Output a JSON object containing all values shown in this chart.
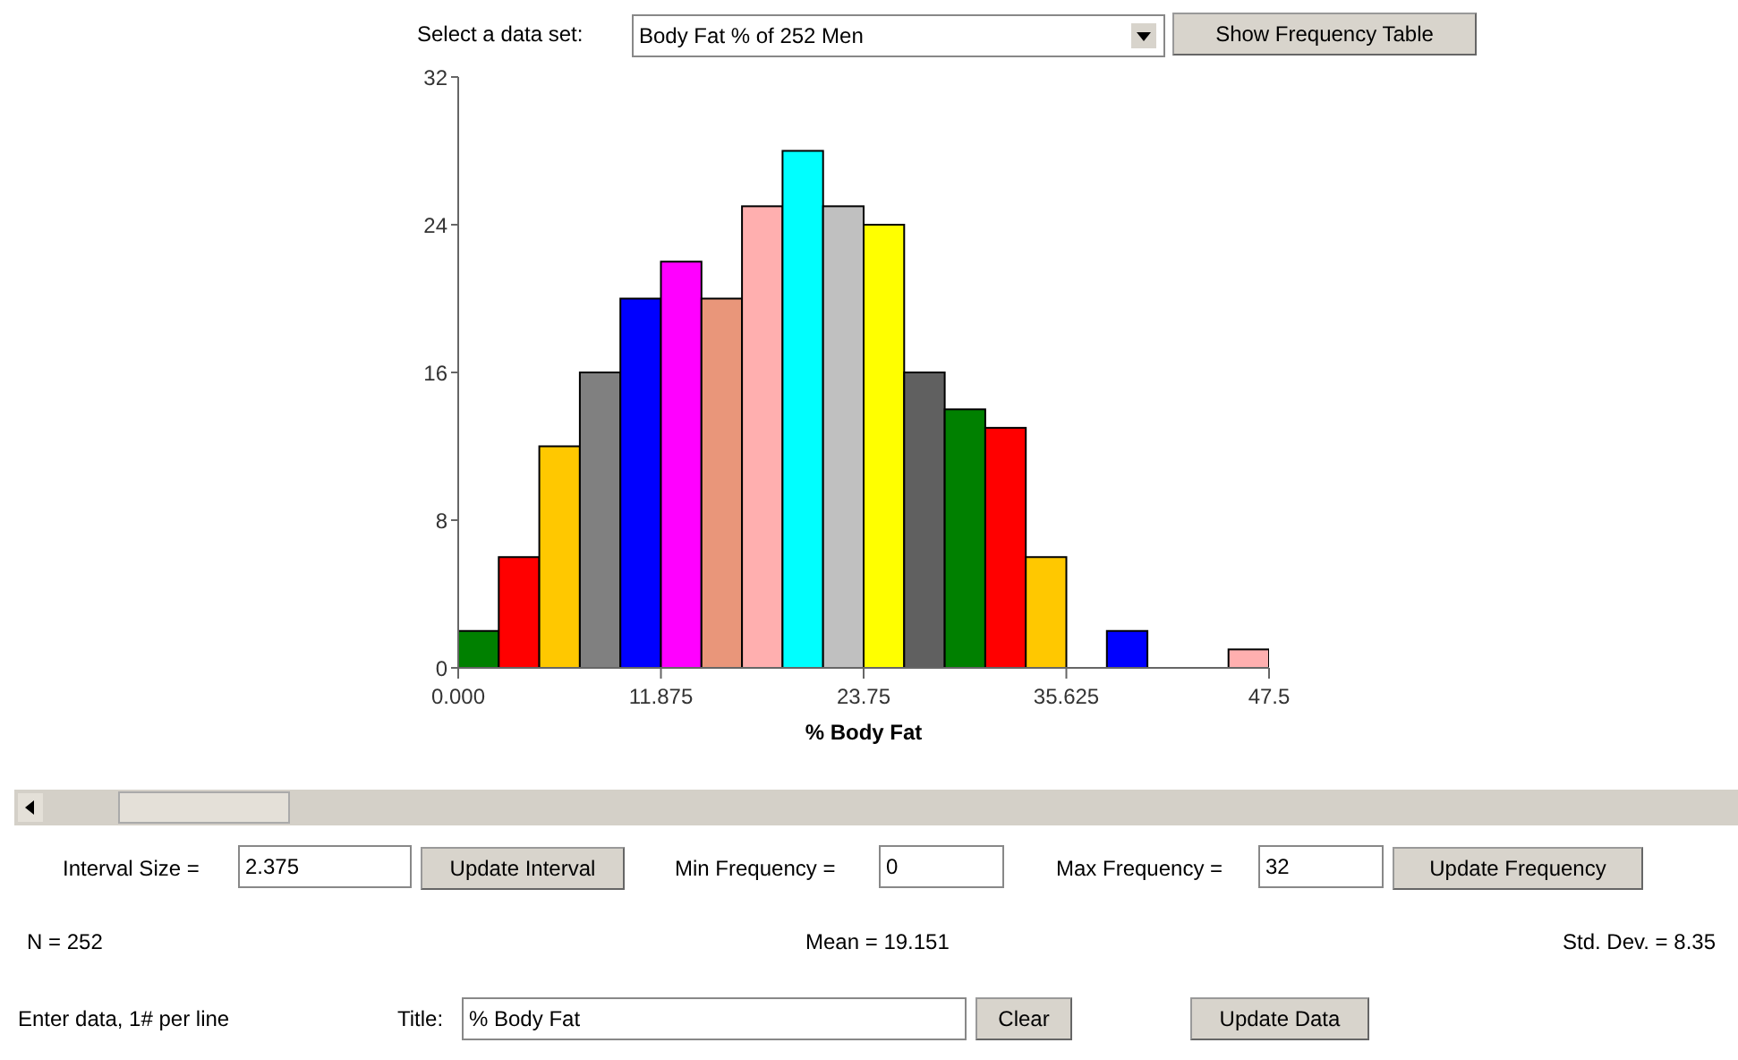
{
  "chart_data": {
    "type": "histogram",
    "xlabel": "% Body Fat",
    "bins": [
      0,
      2.375,
      4.75,
      7.125,
      9.5,
      11.875,
      14.25,
      16.625,
      19,
      21.375,
      23.75,
      26.125,
      28.5,
      30.875,
      33.25,
      35.625,
      38,
      40.375,
      42.75,
      45.125,
      47.5
    ],
    "values": [
      2,
      6,
      12,
      16,
      20,
      22,
      20,
      25,
      28,
      25,
      24,
      16,
      14,
      13,
      6,
      0,
      2,
      0,
      0,
      1
    ],
    "colors": [
      "#008000",
      "#ff0000",
      "#ffc800",
      "#808080",
      "#0000ff",
      "#ff00ff",
      "#e9967a",
      "#ffafaf",
      "#00ffff",
      "#c0c0c0",
      "#ffff00",
      "#606060",
      "#008000",
      "#ff0000",
      "#ffc800",
      "#808080",
      "#0000ff",
      "#ff00ff",
      "#e9967a",
      "#ffafaf"
    ],
    "xlim": [
      0,
      47.5
    ],
    "xticks": [
      {
        "value": 0,
        "label": "0.000"
      },
      11.875,
      23.75,
      35.625,
      47.5
    ],
    "ylim": [
      0,
      32
    ],
    "yticks": [
      0,
      8,
      16,
      24,
      32
    ],
    "grid": false,
    "legend": false,
    "annotations": [
      "Select a data set:",
      "Body Fat % of 252 Men",
      "Show Frequency Table",
      "Interval Size =",
      "2.375",
      "Update Interval",
      "Min Frequency =",
      "0",
      "Max Frequency =",
      "32",
      "Update Frequency",
      "N = 252",
      "Mean = 19.151",
      "Std. Dev. = 8.35",
      "Enter data, 1# per line",
      "Title:",
      "% Body Fat",
      "Clear",
      "Update Data"
    ]
  }
}
